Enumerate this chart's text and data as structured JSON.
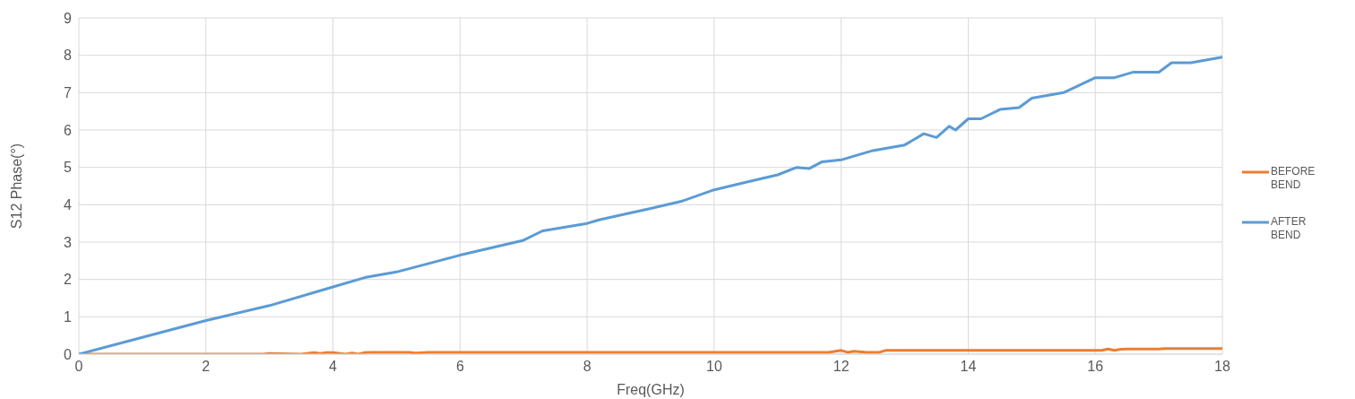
{
  "chart_data": {
    "type": "line",
    "xlabel": "Freq(GHz)",
    "ylabel": "S12 Phase(°)",
    "xlim": [
      0,
      18
    ],
    "xticks": [
      0,
      2,
      4,
      6,
      8,
      10,
      12,
      14,
      16,
      18
    ],
    "ylim": [
      0,
      9
    ],
    "yticks": [
      0,
      1,
      2,
      3,
      4,
      5,
      6,
      7,
      8,
      9
    ],
    "grid": true,
    "legend": "right",
    "marker": "none",
    "line_style": "solid",
    "series": [
      {
        "name": "BEFORE BEND",
        "color": "#ed7d31",
        "x": [
          0,
          2.9,
          3.0,
          3.5,
          3.7,
          3.8,
          3.9,
          4.0,
          4.2,
          4.3,
          4.4,
          4.5,
          4.6,
          5.2,
          5.3,
          5.5,
          11.8,
          12.0,
          12.1,
          12.2,
          12.4,
          12.6,
          12.7,
          16.1,
          16.2,
          16.3,
          16.4,
          16.5,
          17.0,
          17.1,
          18
        ],
        "values": [
          0,
          0,
          0.02,
          0,
          0.04,
          0.02,
          0.04,
          0.04,
          0,
          0.03,
          0,
          0.04,
          0.05,
          0.05,
          0.03,
          0.05,
          0.05,
          0.1,
          0.05,
          0.08,
          0.05,
          0.05,
          0.1,
          0.1,
          0.14,
          0.1,
          0.13,
          0.14,
          0.14,
          0.15,
          0.15
        ]
      },
      {
        "name": "AFTER BEND",
        "color": "#5b9bd5",
        "x": [
          0,
          1,
          2,
          3,
          4,
          4.5,
          5,
          6,
          7,
          7.3,
          8,
          8.2,
          9,
          9.5,
          10,
          10.5,
          11,
          11.3,
          11.5,
          11.7,
          12,
          12.2,
          12.5,
          13,
          13.3,
          13.5,
          13.7,
          13.8,
          14,
          14.2,
          14.5,
          14.8,
          15,
          15.5,
          16,
          16.3,
          16.6,
          17,
          17.2,
          17.5,
          18
        ],
        "values": [
          0,
          0.45,
          0.9,
          1.3,
          1.8,
          2.05,
          2.2,
          2.65,
          3.05,
          3.3,
          3.5,
          3.6,
          3.9,
          4.1,
          4.4,
          4.6,
          4.8,
          5.0,
          4.97,
          5.15,
          5.2,
          5.3,
          5.45,
          5.6,
          5.9,
          5.8,
          6.1,
          6.0,
          6.3,
          6.3,
          6.55,
          6.6,
          6.85,
          7.0,
          7.4,
          7.4,
          7.55,
          7.55,
          7.8,
          7.8,
          7.95
        ]
      }
    ]
  }
}
